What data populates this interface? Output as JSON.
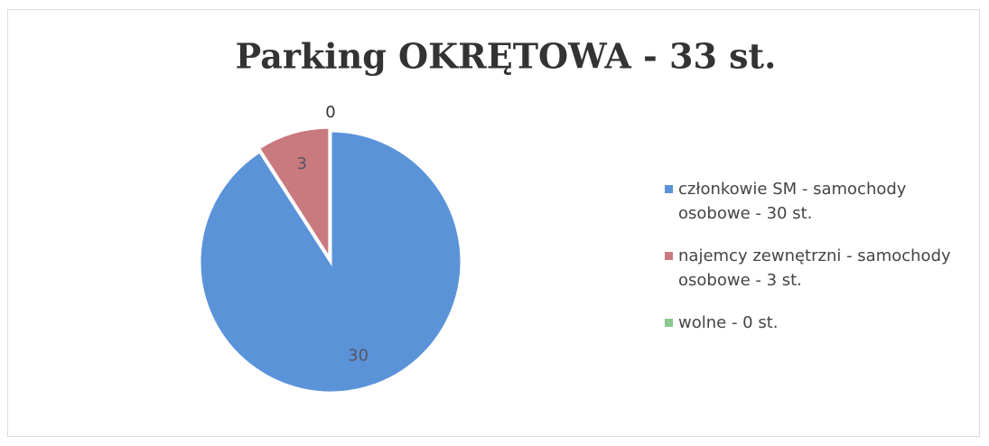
{
  "chart_data": {
    "type": "pie",
    "title": "Parking OKRĘTOWA - 33 st.",
    "categories": [
      "członkowie SM - samochody osobowe  - 30 st.",
      "najemcy zewnętrzni - samochody osobowe - 3 st.",
      "wolne - 0 st."
    ],
    "values": [
      30,
      3,
      0
    ],
    "colors": [
      "#5b93d8",
      "#c97a7e",
      "#8cc98c"
    ],
    "legend": "right"
  }
}
